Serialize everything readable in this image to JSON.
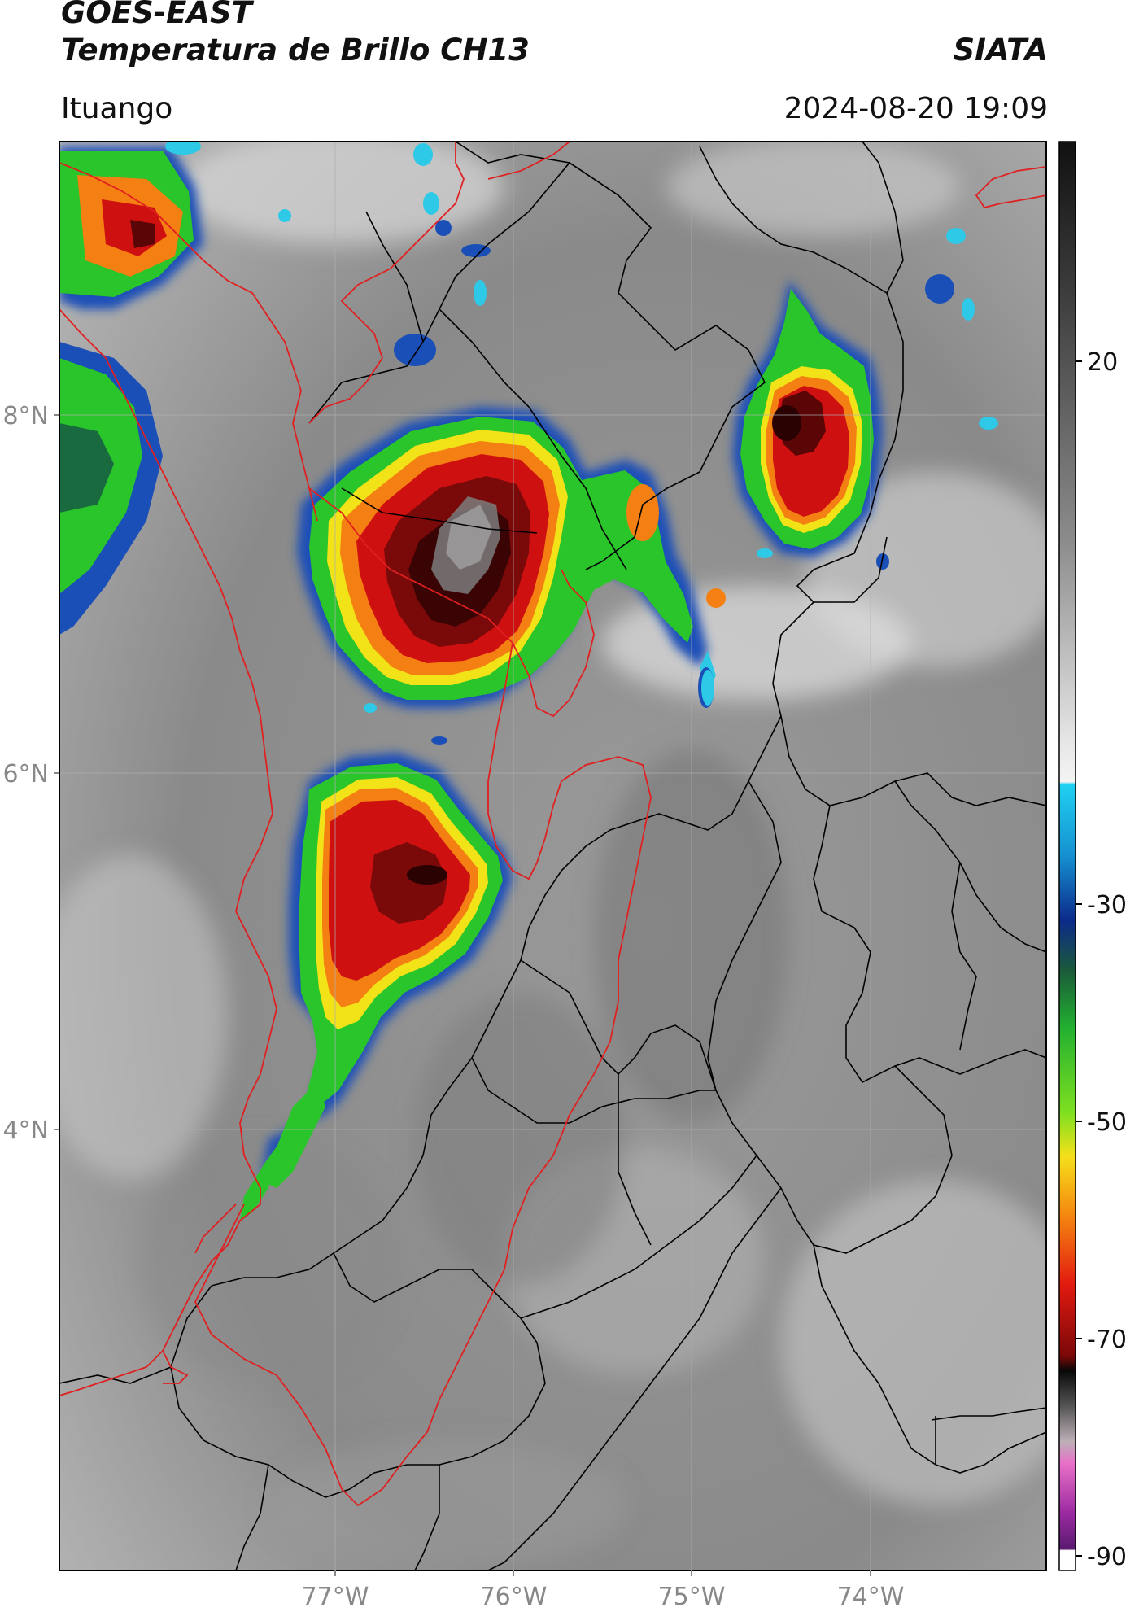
{
  "header": {
    "satellite": "GOES-EAST",
    "product": "Temperatura de Brillo CH13",
    "organization": "SIATA",
    "location": "Ituango",
    "timestamp": "2024-08-20 19:09"
  },
  "axes": {
    "lat_labels": [
      "8°N",
      "6°N",
      "4°N"
    ],
    "lon_labels": [
      "77°W",
      "76°W",
      "75°W",
      "74°W"
    ]
  },
  "colorbar": {
    "ticks": [
      "20",
      "-30",
      "-50",
      "-70",
      "-90"
    ],
    "colors": {
      "warm_gray_top": "#111111",
      "light_gray": "#eeeeee",
      "cyan": "#22c4e8",
      "blue": "#113a9b",
      "green": "#1fc21f",
      "yellow": "#f4e21a",
      "orange": "#f58a0e",
      "red": "#d71010",
      "dark_red": "#4a0505",
      "black": "#050505",
      "pink": "#e03fb8",
      "purple": "#7a1a86"
    }
  },
  "storm_colors": {
    "outer_blue": "#1b4fb8",
    "cyan_edge": "#2ec9e6",
    "green": "#29c52a",
    "yellow": "#f2e218",
    "orange": "#f47f12",
    "red": "#cf1010",
    "dark_red": "#5a0606",
    "core_gray": "#7c7c7c"
  },
  "border_colors": {
    "admin": "#000000",
    "department": "#e02020"
  }
}
